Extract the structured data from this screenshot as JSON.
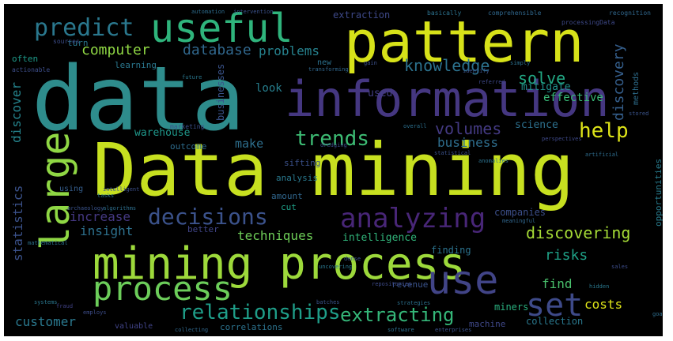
{
  "words": [
    {
      "text": "data",
      "color": "#2e8c8c"
    },
    {
      "text": "Data mining",
      "color": "#c7e020"
    },
    {
      "text": "pattern",
      "color": "#d7e219"
    },
    {
      "text": "information",
      "color": "#453781"
    },
    {
      "text": "mining process",
      "color": "#9dd93b"
    },
    {
      "text": "useful",
      "color": "#2fb47c"
    },
    {
      "text": "large",
      "color": "#8fd744"
    },
    {
      "text": "process",
      "color": "#6ccd5a"
    },
    {
      "text": "use",
      "color": "#414487"
    },
    {
      "text": "set",
      "color": "#3e4a89"
    },
    {
      "text": "analyzing",
      "color": "#482677"
    },
    {
      "text": "predict",
      "color": "#2a788e"
    },
    {
      "text": "decisions",
      "color": "#3b528b"
    },
    {
      "text": "relationships",
      "color": "#1f9e89"
    },
    {
      "text": "extracting",
      "color": "#35b779"
    },
    {
      "text": "trends",
      "color": "#3dbc74"
    },
    {
      "text": "help",
      "color": "#dde318"
    },
    {
      "text": "knowledge",
      "color": "#2c728e"
    },
    {
      "text": "volumes",
      "color": "#443a83"
    },
    {
      "text": "discovery",
      "color": "#355f8d"
    },
    {
      "text": "database",
      "color": "#31688e"
    },
    {
      "text": "problems",
      "color": "#26828e"
    },
    {
      "text": "computer",
      "color": "#8fd744"
    },
    {
      "text": "solve",
      "color": "#22a884"
    },
    {
      "text": "discovering",
      "color": "#a5db36"
    },
    {
      "text": "costs",
      "color": "#dde318"
    },
    {
      "text": "risks",
      "color": "#1fa187"
    },
    {
      "text": "customer",
      "color": "#2a788e"
    },
    {
      "text": "increase",
      "color": "#453882"
    },
    {
      "text": "insight",
      "color": "#2d718e"
    },
    {
      "text": "techniques",
      "color": "#6ece58"
    },
    {
      "text": "statistics",
      "color": "#3b528b"
    },
    {
      "text": "discover",
      "color": "#25858e"
    },
    {
      "text": "business",
      "color": "#2e6e8e"
    },
    {
      "text": "find",
      "color": "#4ac16d"
    },
    {
      "text": "make",
      "color": "#2e6f8e"
    },
    {
      "text": "effective",
      "color": "#38b977"
    },
    {
      "text": "mitigate",
      "color": "#21918c"
    },
    {
      "text": "intelligence",
      "color": "#31b57b"
    },
    {
      "text": "warehouse",
      "color": "#1f988b"
    },
    {
      "text": "science",
      "color": "#2d708e"
    },
    {
      "text": "look",
      "color": "#277f8e"
    },
    {
      "text": "used",
      "color": "#433e85"
    },
    {
      "text": "businesses",
      "color": "#3a548c"
    },
    {
      "text": "finding",
      "color": "#2c738e"
    },
    {
      "text": "companies",
      "color": "#3c4f8a"
    },
    {
      "text": "miners",
      "color": "#2ab07f"
    },
    {
      "text": "collection",
      "color": "#2a788e"
    },
    {
      "text": "extraction",
      "color": "#3e4989"
    },
    {
      "text": "outcome",
      "color": "#2e6d8e"
    },
    {
      "text": "sifting",
      "color": "#3b518b"
    },
    {
      "text": "analysis",
      "color": "#29798e"
    },
    {
      "text": "amount",
      "color": "#31678e"
    },
    {
      "text": "cut",
      "color": "#1fa088"
    },
    {
      "text": "revenue",
      "color": "#3a538b"
    },
    {
      "text": "better",
      "color": "#404588"
    },
    {
      "text": "correlations",
      "color": "#2c738e"
    },
    {
      "text": "machine",
      "color": "#3f4889"
    },
    {
      "text": "opportunities",
      "color": "#287c8e"
    },
    {
      "text": "turn",
      "color": "#2a768e"
    },
    {
      "text": "often",
      "color": "#1e9b8a"
    },
    {
      "text": "learning",
      "color": "#2a778e"
    },
    {
      "text": "actionable",
      "color": "#3d4e8a"
    },
    {
      "text": "marketing",
      "color": "#3b518b"
    },
    {
      "text": "methods",
      "color": "#2e6e8e"
    },
    {
      "text": "sources",
      "color": "#3d4d8a"
    },
    {
      "text": "valuable",
      "color": "#404387"
    },
    {
      "text": "using",
      "color": "#355e8d"
    },
    {
      "text": "new",
      "color": "#2c718e"
    },
    {
      "text": "automation",
      "color": "#2e6d8e"
    },
    {
      "text": "intervention",
      "color": "#3b528b"
    },
    {
      "text": "basically",
      "color": "#2c728e"
    },
    {
      "text": "comprehensible",
      "color": "#30688e"
    },
    {
      "text": "processingData",
      "color": "#3e4989"
    },
    {
      "text": "recognition",
      "color": "#31688e"
    },
    {
      "text": "tasks",
      "color": "#2a788e"
    },
    {
      "text": "archaeology",
      "color": "#3a538b"
    },
    {
      "text": "algorithms",
      "color": "#2e6f8e"
    },
    {
      "text": "intelligent",
      "color": "#3c4f8a"
    },
    {
      "text": "mathematical",
      "color": "#2c728e"
    },
    {
      "text": "employs",
      "color": "#3d4d8a"
    },
    {
      "text": "systems",
      "color": "#2a778e"
    },
    {
      "text": "fraud",
      "color": "#414287"
    },
    {
      "text": "collecting",
      "color": "#31688e"
    },
    {
      "text": "software",
      "color": "#2e6e8e"
    },
    {
      "text": "enterprises",
      "color": "#3b528b"
    },
    {
      "text": "strategies",
      "color": "#2c718e"
    },
    {
      "text": "repositories",
      "color": "#3e4a89"
    },
    {
      "text": "hidden",
      "color": "#2a788e"
    },
    {
      "text": "batches",
      "color": "#3a548c"
    },
    {
      "text": "meaningful",
      "color": "#31678e"
    },
    {
      "text": "statistical",
      "color": "#3b518b"
    },
    {
      "text": "artificial",
      "color": "#2e6d8e"
    },
    {
      "text": "dredging",
      "color": "#3d4e8a"
    },
    {
      "text": "anomalies",
      "color": "#2c728e"
    },
    {
      "text": "perspectives",
      "color": "#3e4989"
    },
    {
      "text": "future",
      "color": "#2a778e"
    },
    {
      "text": "gain",
      "color": "#3c508b"
    },
    {
      "text": "overall",
      "color": "#2d708e"
    },
    {
      "text": "stored",
      "color": "#3a538b"
    },
    {
      "text": "goal",
      "color": "#2e6e8e"
    },
    {
      "text": "sales",
      "color": "#3d4d8a"
    },
    {
      "text": "uncovering",
      "color": "#2a788e"
    },
    {
      "text": "identify",
      "color": "#3b528b"
    },
    {
      "text": "transforming",
      "color": "#31688e"
    },
    {
      "text": "referred",
      "color": "#3e4989"
    },
    {
      "text": "simply",
      "color": "#2c718e"
    },
    {
      "text": "dense",
      "color": "#3a548c"
    }
  ]
}
